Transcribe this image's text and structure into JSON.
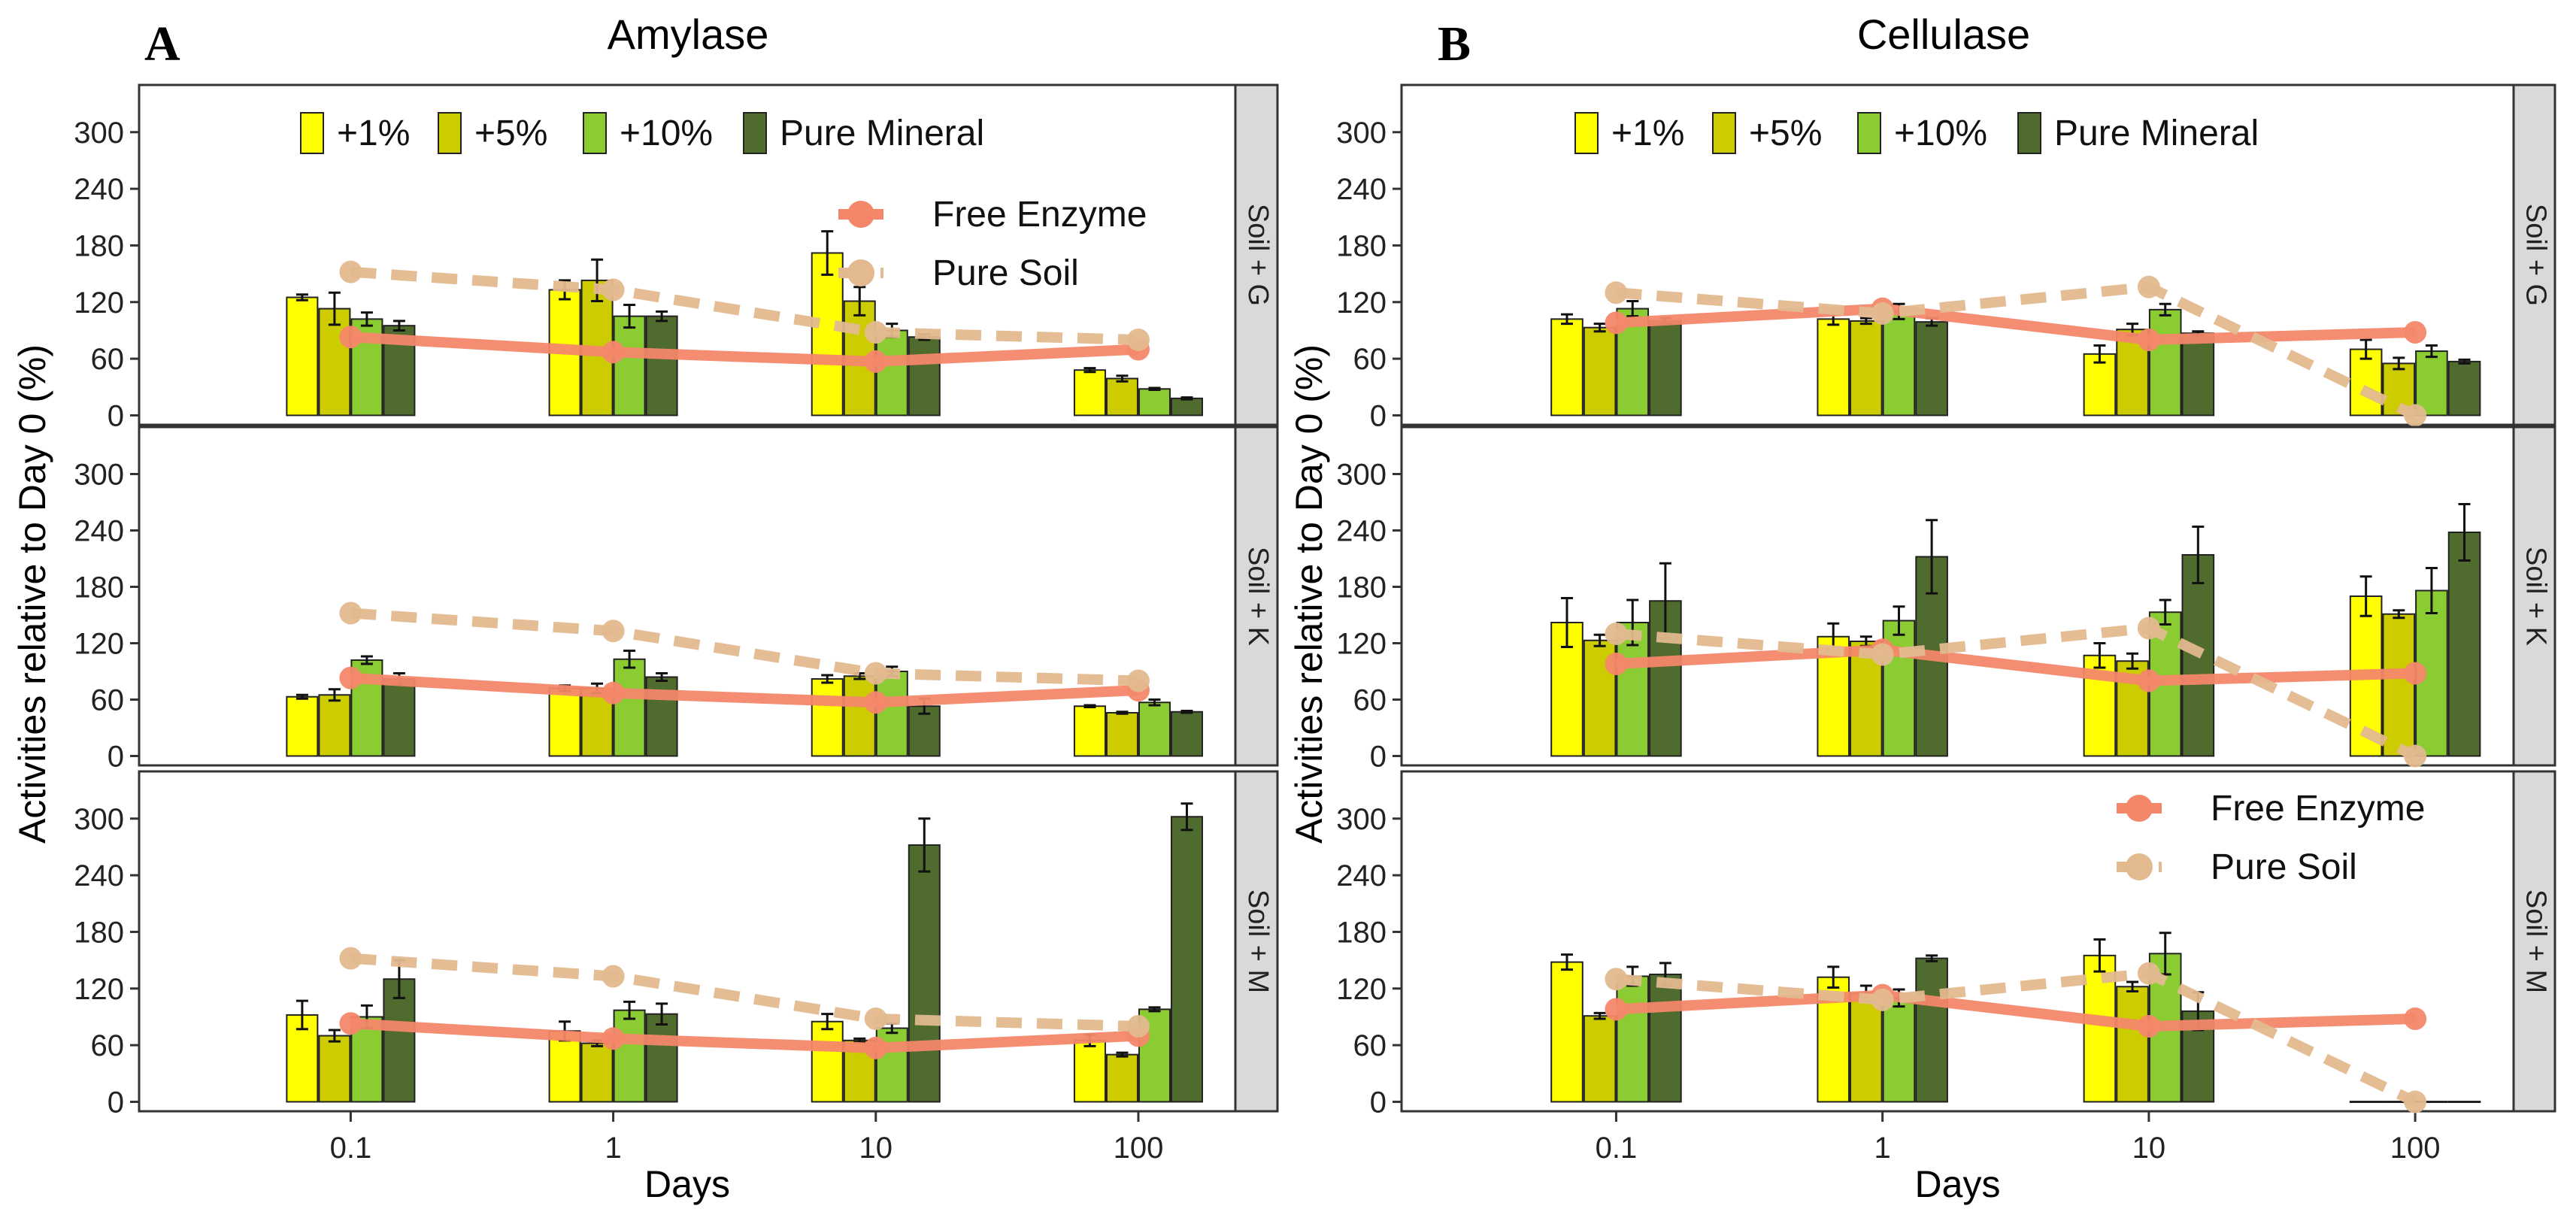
{
  "chart_data": [
    {
      "type": "bar",
      "letter": "A",
      "title": "Amylase",
      "xlabel": "Days",
      "ylabel": "Activities relative to Day 0 (%)",
      "x_ticks": [
        "0.1",
        "1",
        "10",
        "100"
      ],
      "x_log": true,
      "ylim": [
        -10,
        350
      ],
      "y_ticks": [
        "0",
        "60",
        "120",
        "180",
        "240",
        "300"
      ],
      "grid": false,
      "legend_bars": {
        "position": "top-center",
        "items": [
          "+1%",
          "+5%",
          "+10%",
          "Pure Mineral"
        ]
      },
      "legend_lines": {
        "position": "upper-right",
        "items": [
          "Free Enzyme",
          "Pure Soil"
        ]
      },
      "bar_series": [
        {
          "name": "+1%",
          "color": "#ffff00"
        },
        {
          "name": "+5%",
          "color": "#cccc00"
        },
        {
          "name": "+10%",
          "color": "#8ccc33"
        },
        {
          "name": "Pure Mineral",
          "color": "#4f6b2e"
        }
      ],
      "line_series": [
        {
          "name": "Free Enzyme",
          "color": "#f4876a",
          "style": "solid"
        },
        {
          "name": "Pure Soil",
          "color": "#e3b98f",
          "style": "dashed"
        }
      ],
      "facets": [
        {
          "strip": "Soil + G",
          "bars": [
            [
              125,
              113,
              102,
              95
            ],
            [
              133,
              143,
              105,
              105
            ],
            [
              172,
              121,
              90,
              83
            ],
            [
              48,
              39,
              28,
              18
            ]
          ],
          "errors": [
            [
              3,
              17,
              7,
              5
            ],
            [
              10,
              22,
              12,
              5
            ],
            [
              23,
              15,
              7,
              3
            ],
            [
              2,
              3,
              1,
              1
            ]
          ],
          "lines": {
            "Free Enzyme": [
              83,
              67,
              57,
              70
            ],
            "Pure Soil": [
              152,
              133,
              88,
              80
            ]
          }
        },
        {
          "strip": "Soil + K",
          "bars": [
            [
              63,
              65,
              102,
              82
            ],
            [
              72,
              72,
              103,
              84
            ],
            [
              82,
              85,
              90,
              53
            ],
            [
              53,
              46,
              57,
              47
            ]
          ],
          "errors": [
            [
              2,
              6,
              4,
              6
            ],
            [
              3,
              5,
              9,
              4
            ],
            [
              4,
              3,
              5,
              8
            ],
            [
              1,
              1,
              3,
              1
            ]
          ],
          "lines": {
            "Free Enzyme": [
              83,
              67,
              57,
              70
            ],
            "Pure Soil": [
              152,
              133,
              88,
              80
            ]
          }
        },
        {
          "strip": "Soil + M",
          "bars": [
            [
              92,
              70,
              90,
              130
            ],
            [
              75,
              62,
              97,
              93
            ],
            [
              85,
              65,
              78,
              272
            ],
            [
              65,
              50,
              98,
              302
            ]
          ],
          "errors": [
            [
              15,
              6,
              12,
              20
            ],
            [
              10,
              3,
              9,
              11
            ],
            [
              8,
              2,
              5,
              28
            ],
            [
              6,
              2,
              2,
              14
            ]
          ],
          "lines": {
            "Free Enzyme": [
              83,
              67,
              57,
              70
            ],
            "Pure Soil": [
              152,
              133,
              88,
              80
            ]
          }
        }
      ]
    },
    {
      "type": "bar",
      "letter": "B",
      "title": "Cellulase",
      "xlabel": "Days",
      "ylabel": "Activities relative to Day 0 (%)",
      "x_ticks": [
        "0.1",
        "1",
        "10",
        "100"
      ],
      "x_log": true,
      "ylim": [
        -10,
        350
      ],
      "y_ticks": [
        "0",
        "60",
        "120",
        "180",
        "240",
        "300"
      ],
      "grid": false,
      "legend_bars": {
        "position": "top-center",
        "items": [
          "+1%",
          "+5%",
          "+10%",
          "Pure Mineral"
        ]
      },
      "legend_lines": {
        "position": "lower-right",
        "items": [
          "Free Enzyme",
          "Pure Soil"
        ]
      },
      "bar_series": [
        {
          "name": "+1%",
          "color": "#ffff00"
        },
        {
          "name": "+5%",
          "color": "#cccc00"
        },
        {
          "name": "+10%",
          "color": "#8ccc33"
        },
        {
          "name": "Pure Mineral",
          "color": "#4f6b2e"
        }
      ],
      "line_series": [
        {
          "name": "Free Enzyme",
          "color": "#f4876a",
          "style": "solid"
        },
        {
          "name": "Pure Soil",
          "color": "#e3b98f",
          "style": "dashed"
        }
      ],
      "facets": [
        {
          "strip": "Soil + G",
          "bars": [
            [
              102,
              93,
              113,
              100
            ],
            [
              102,
              100,
              110,
              99
            ],
            [
              65,
              91,
              112,
              87
            ],
            [
              70,
              55,
              68,
              57
            ]
          ],
          "errors": [
            [
              5,
              4,
              8,
              3
            ],
            [
              6,
              3,
              8,
              4
            ],
            [
              9,
              6,
              6,
              2
            ],
            [
              10,
              6,
              6,
              2
            ]
          ],
          "lines": {
            "Free Enzyme": [
              98,
              113,
              80,
              88
            ],
            "Pure Soil": [
              130,
              108,
              136,
              0
            ]
          }
        },
        {
          "strip": "Soil + K",
          "bars": [
            [
              142,
              123,
              142,
              165
            ],
            [
              127,
              122,
              144,
              212
            ],
            [
              107,
              101,
              153,
              214
            ],
            [
              170,
              151,
              176,
              238
            ]
          ],
          "errors": [
            [
              26,
              6,
              24,
              40
            ],
            [
              14,
              5,
              15,
              39
            ],
            [
              13,
              8,
              13,
              30
            ],
            [
              21,
              4,
              24,
              30
            ]
          ],
          "lines": {
            "Free Enzyme": [
              98,
              113,
              80,
              88
            ],
            "Pure Soil": [
              130,
              108,
              136,
              0
            ]
          }
        },
        {
          "strip": "Soil + M",
          "bars": [
            [
              148,
              91,
              133,
              135
            ],
            [
              132,
              115,
              110,
              152
            ],
            [
              155,
              122,
              157,
              96
            ],
            [
              0,
              0,
              0,
              0
            ]
          ],
          "errors": [
            [
              8,
              3,
              10,
              12
            ],
            [
              11,
              8,
              9,
              3
            ],
            [
              17,
              5,
              22,
              20
            ],
            [
              0,
              0,
              0,
              0
            ]
          ],
          "lines": {
            "Free Enzyme": [
              98,
              113,
              80,
              88
            ],
            "Pure Soil": [
              130,
              108,
              136,
              0
            ]
          }
        }
      ]
    }
  ]
}
